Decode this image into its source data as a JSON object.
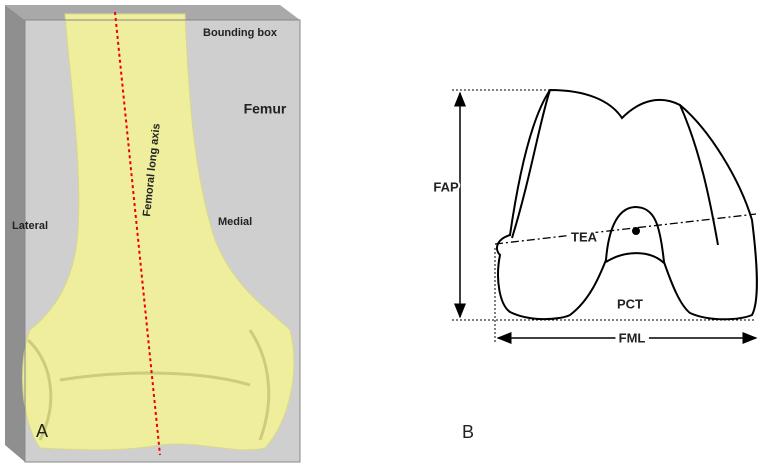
{
  "panel_a": {
    "box_label": "Bounding box",
    "bone_label": "Femur",
    "axis_label": "Femoral long axis",
    "left_label": "Lateral",
    "right_label": "Medial",
    "panel_letter": "A"
  },
  "panel_b": {
    "vertical_label": "FAP",
    "transepicondylar_label": "TEA",
    "posterior_label": "PCT",
    "width_label": "FML",
    "panel_letter": "B"
  }
}
